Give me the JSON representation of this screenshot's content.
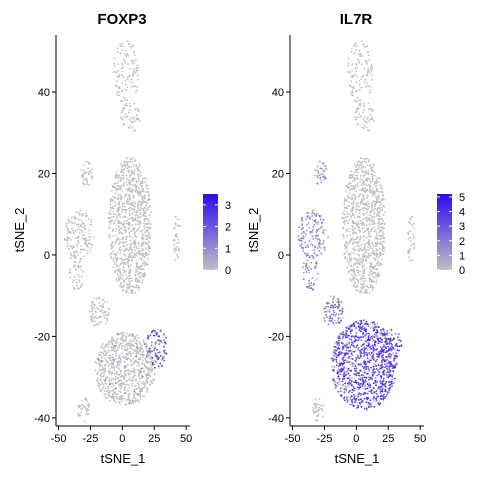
{
  "chart_data": [
    {
      "type": "scatter",
      "title": "FOXP3",
      "xlabel": "tSNE_1",
      "ylabel": "tSNE_2",
      "xlim": [
        -52,
        53
      ],
      "ylim": [
        -42,
        54
      ],
      "xticks": [
        -50,
        -25,
        0,
        25,
        50
      ],
      "xtick_labels": [
        "-50",
        "-25",
        "0",
        "25",
        "50"
      ],
      "yticks": [
        -40,
        -20,
        0,
        20,
        40
      ],
      "ytick_labels": [
        "-40",
        "-20",
        "0",
        "20",
        "40"
      ],
      "legend": {
        "position": "right",
        "min": 0,
        "max": 3.5,
        "ticks": [
          0,
          1,
          2,
          3
        ],
        "tick_labels": [
          "0",
          "1",
          "2",
          "3"
        ],
        "low_color": "#c0c0c0",
        "high_color": "#2a0cf0"
      },
      "grid": false,
      "clusters": [
        {
          "cx": 3,
          "cy": 45,
          "rx": 10,
          "ry": 8,
          "n": 110,
          "expr": 0
        },
        {
          "cx": 6,
          "cy": 34,
          "rx": 8,
          "ry": 4,
          "n": 50,
          "expr": 0
        },
        {
          "cx": 6,
          "cy": 7,
          "rx": 17,
          "ry": 17,
          "n": 900,
          "expr": 0
        },
        {
          "cx": -28,
          "cy": 20,
          "rx": 5,
          "ry": 3,
          "n": 40,
          "expr": 0
        },
        {
          "cx": -34,
          "cy": 5,
          "rx": 12,
          "ry": 6,
          "n": 140,
          "expr": 0
        },
        {
          "cx": -36,
          "cy": -4,
          "rx": 6,
          "ry": 5,
          "n": 50,
          "expr": 0
        },
        {
          "cx": 43,
          "cy": 4,
          "rx": 3,
          "ry": 6,
          "n": 35,
          "expr": 0
        },
        {
          "cx": 2,
          "cy": -28,
          "rx": 24,
          "ry": 9,
          "n": 700,
          "expr": 0
        },
        {
          "cx": -18,
          "cy": -14,
          "rx": 8,
          "ry": 4,
          "n": 80,
          "expr": 0
        },
        {
          "cx": -30,
          "cy": -38,
          "rx": 5,
          "ry": 3,
          "n": 40,
          "expr": 0
        },
        {
          "cx": 27,
          "cy": -23,
          "rx": 9,
          "ry": 5,
          "n": 90,
          "expr": 2.6
        },
        {
          "cx": 2,
          "cy": -28,
          "rx": 24,
          "ry": 9,
          "n": 40,
          "expr": 1.4
        }
      ]
    },
    {
      "type": "scatter",
      "title": "IL7R",
      "xlabel": "tSNE_1",
      "ylabel": "tSNE_2",
      "xlim": [
        -52,
        53
      ],
      "ylim": [
        -42,
        54
      ],
      "xticks": [
        -50,
        -25,
        0,
        25,
        50
      ],
      "xtick_labels": [
        "-50",
        "-25",
        "0",
        "25",
        "50"
      ],
      "yticks": [
        -40,
        -20,
        0,
        20,
        40
      ],
      "ytick_labels": [
        "-40",
        "-20",
        "0",
        "20",
        "40"
      ],
      "legend": {
        "position": "right",
        "min": 0,
        "max": 5.2,
        "ticks": [
          0,
          1,
          2,
          3,
          4,
          5
        ],
        "tick_labels": [
          "0",
          "1",
          "2",
          "3",
          "4",
          "5"
        ],
        "low_color": "#c0c0c0",
        "high_color": "#2a0cf0"
      },
      "grid": false,
      "clusters": [
        {
          "cx": 3,
          "cy": 45,
          "rx": 10,
          "ry": 8,
          "n": 110,
          "expr": 0
        },
        {
          "cx": 6,
          "cy": 34,
          "rx": 8,
          "ry": 4,
          "n": 50,
          "expr": 0
        },
        {
          "cx": 6,
          "cy": 7,
          "rx": 17,
          "ry": 17,
          "n": 900,
          "expr": 0
        },
        {
          "cx": -28,
          "cy": 20,
          "rx": 5,
          "ry": 3,
          "n": 40,
          "expr": 1.5
        },
        {
          "cx": -34,
          "cy": 5,
          "rx": 12,
          "ry": 6,
          "n": 140,
          "expr": 2.0
        },
        {
          "cx": -36,
          "cy": -4,
          "rx": 6,
          "ry": 5,
          "n": 50,
          "expr": 2.0
        },
        {
          "cx": 43,
          "cy": 4,
          "rx": 3,
          "ry": 6,
          "n": 35,
          "expr": 0
        },
        {
          "cx": 6,
          "cy": -27,
          "rx": 26,
          "ry": 11,
          "n": 1000,
          "expr": 4.2
        },
        {
          "cx": -18,
          "cy": -14,
          "rx": 8,
          "ry": 4,
          "n": 80,
          "expr": 3.0
        },
        {
          "cx": -30,
          "cy": -38,
          "rx": 5,
          "ry": 3,
          "n": 40,
          "expr": 0
        },
        {
          "cx": 27,
          "cy": -23,
          "rx": 9,
          "ry": 5,
          "n": 90,
          "expr": 4.0
        }
      ]
    }
  ]
}
